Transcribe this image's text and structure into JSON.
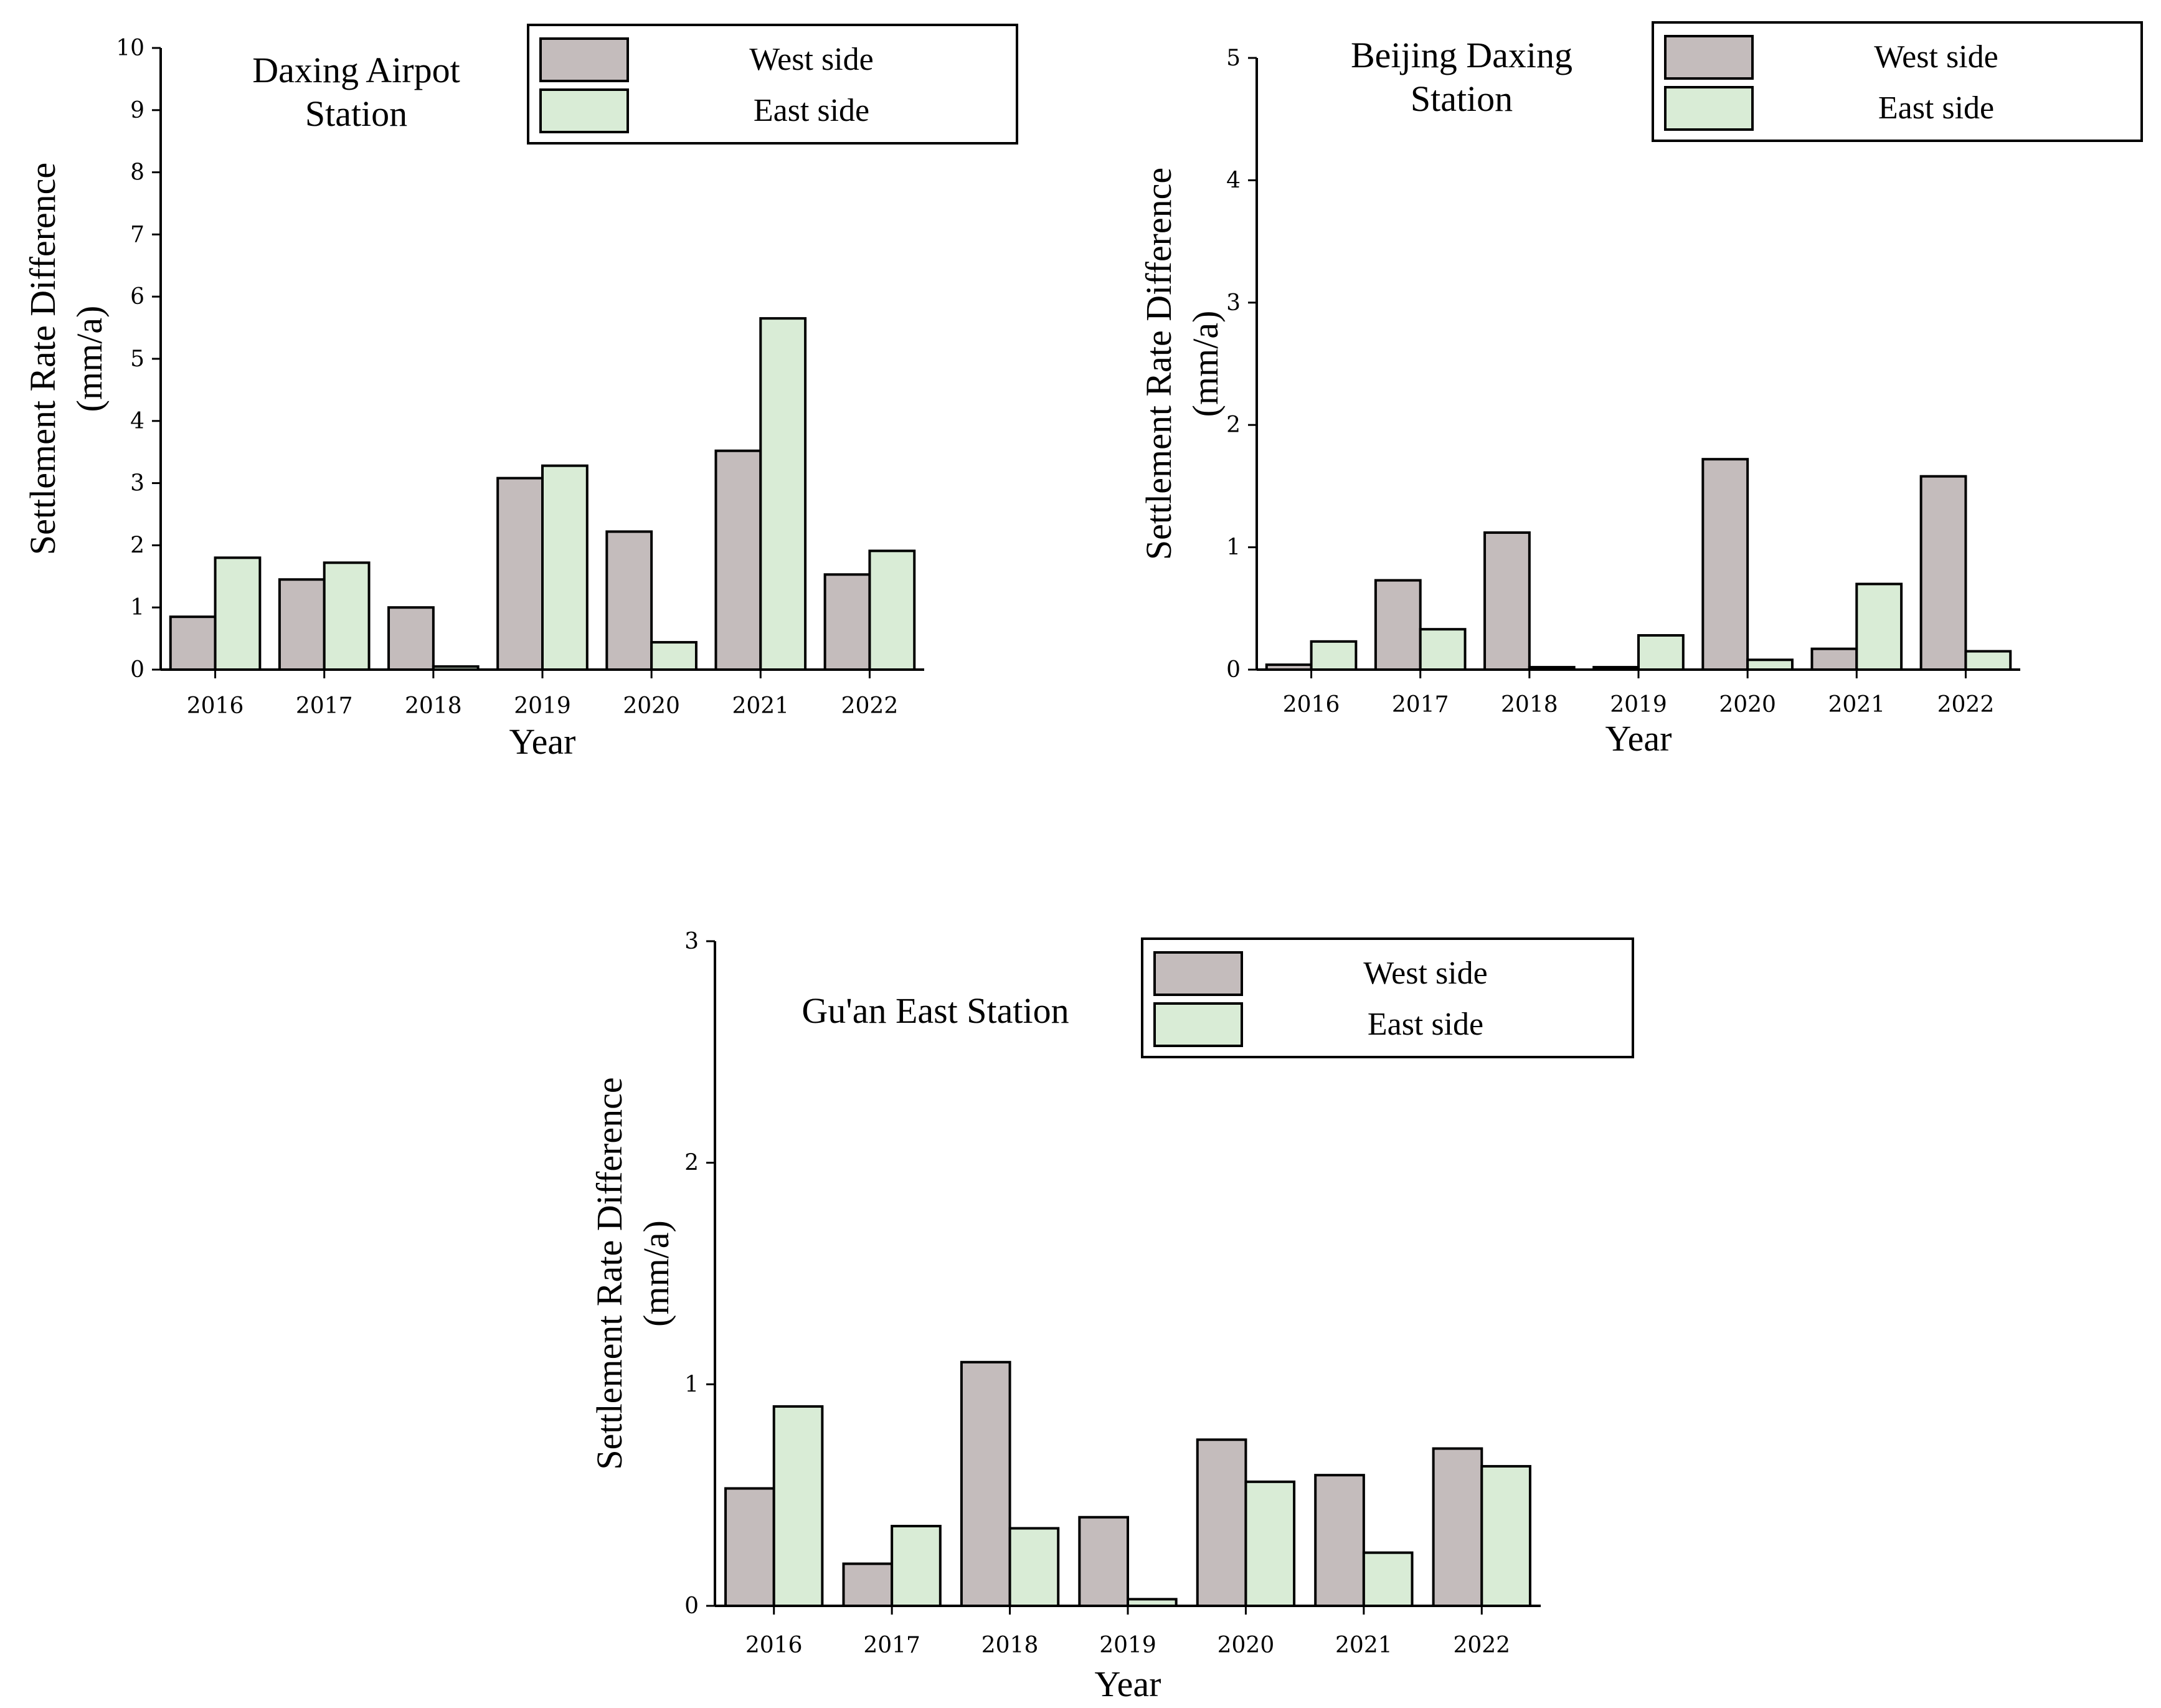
{
  "colors": {
    "west": "#c4bcbc",
    "east": "#d9ecd6",
    "ink": "#000000"
  },
  "chart_data": [
    {
      "type": "bar",
      "title": [
        "Daxing Airpot",
        "Station"
      ],
      "categories": [
        "2016",
        "2017",
        "2018",
        "2019",
        "2020",
        "2021",
        "2022"
      ],
      "series": [
        {
          "name": "West side",
          "values": [
            0.85,
            1.45,
            1.0,
            3.08,
            2.22,
            3.52,
            1.53
          ]
        },
        {
          "name": "East side",
          "values": [
            1.8,
            1.72,
            0.05,
            3.28,
            0.44,
            5.65,
            1.91
          ]
        }
      ],
      "xlabel": "Year",
      "ylabel": [
        "Settlement Rate Difference",
        "(mm/a)"
      ],
      "ylim": [
        0,
        10
      ],
      "yticks": [
        0,
        1,
        2,
        3,
        4,
        5,
        6,
        7,
        8,
        9,
        10
      ],
      "legend": "top-right"
    },
    {
      "type": "bar",
      "title": [
        "Beijing Daxing",
        "Station"
      ],
      "categories": [
        "2016",
        "2017",
        "2018",
        "2019",
        "2020",
        "2021",
        "2022"
      ],
      "series": [
        {
          "name": "West side",
          "values": [
            0.04,
            0.73,
            1.12,
            0.02,
            1.72,
            0.17,
            1.58
          ]
        },
        {
          "name": "East side",
          "values": [
            0.23,
            0.33,
            0.02,
            0.28,
            0.08,
            0.7,
            0.15
          ]
        }
      ],
      "xlabel": "Year",
      "ylabel": [
        "Settlement Rate Difference",
        "(mm/a)"
      ],
      "ylim": [
        0,
        5
      ],
      "yticks": [
        0,
        1,
        2,
        3,
        4,
        5
      ],
      "legend": "top-right"
    },
    {
      "type": "bar",
      "title": [
        "Gu'an East Station"
      ],
      "categories": [
        "2016",
        "2017",
        "2018",
        "2019",
        "2020",
        "2021",
        "2022"
      ],
      "series": [
        {
          "name": "West side",
          "values": [
            0.53,
            0.19,
            1.1,
            0.4,
            0.75,
            0.59,
            0.71
          ]
        },
        {
          "name": "East side",
          "values": [
            0.9,
            0.36,
            0.35,
            0.03,
            0.56,
            0.24,
            0.63
          ]
        }
      ],
      "xlabel": "Year",
      "ylabel": [
        "Settlement Rate Difference",
        "(mm/a)"
      ],
      "ylim": [
        0,
        3
      ],
      "yticks": [
        0,
        1,
        2,
        3
      ],
      "legend": "top-right"
    }
  ]
}
